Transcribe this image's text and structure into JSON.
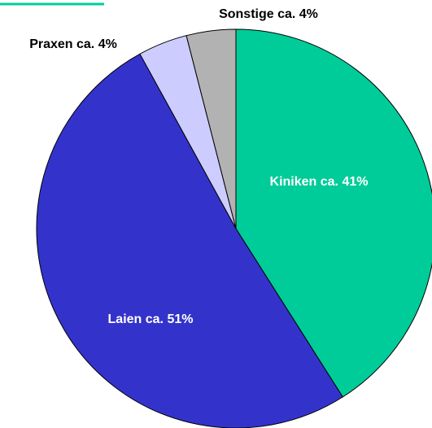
{
  "chart_data": {
    "type": "pie",
    "values": [
      41,
      51,
      4,
      4
    ],
    "value_labels": [
      "Kiniken ca. 41%",
      "Laien ca. 51%",
      "Praxen ca. 4%",
      "Sonstige ca. 4%"
    ],
    "colors": [
      "#00cc99",
      "#3333cc",
      "#ccccff",
      "#b2b2b2"
    ]
  }
}
